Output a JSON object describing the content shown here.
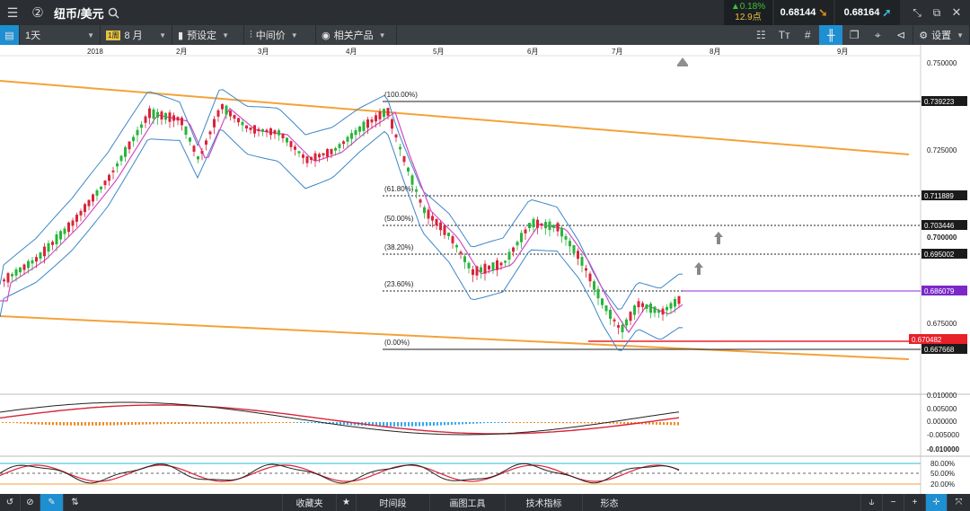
{
  "topbar": {
    "pair": "纽币/美元",
    "badge": "②",
    "change_pct": "▲0.18%",
    "change_pts": "12.9点",
    "sell_price": "0.68144",
    "buy_price": "0.68164"
  },
  "toolbar": {
    "timeframe": "1天",
    "period_badge": "1周",
    "period": "8 月",
    "preset": "预设定",
    "price_type": "中间价",
    "related": "相关产品",
    "settings": "设置"
  },
  "xaxis": {
    "year": "2018",
    "months": [
      "2月",
      "3月",
      "4月",
      "5月",
      "6月",
      "7月",
      "8月",
      "9月"
    ]
  },
  "price_axis": {
    "ticks": [
      "0.750000",
      "0.725000",
      "0.700000",
      "0.675000"
    ],
    "tags": [
      {
        "text": "0.739223",
        "style": "dark"
      },
      {
        "text": "0.711889",
        "style": "dark"
      },
      {
        "text": "0.703446",
        "style": "dark"
      },
      {
        "text": "0.695002",
        "style": "dark"
      },
      {
        "text": "0.686079",
        "style": "purple"
      },
      {
        "text": "0.670482",
        "style": "red"
      },
      {
        "text": "0.667668",
        "style": "dark"
      }
    ]
  },
  "fib_labels": [
    "(100.00%)",
    "(61.80%)",
    "(50.00%)",
    "(38.20%)",
    "(23.60%)",
    "(0.00%)"
  ],
  "macd_axis": [
    "0.010000",
    "0.005000",
    "0.000000",
    "-0.005000",
    "-0.010000"
  ],
  "stoch_axis": [
    "80.00%",
    "50.00%",
    "20.00%"
  ],
  "bottombar": {
    "favorites": "收藏夹",
    "timeframe": "时间段",
    "drawing": "画图工具",
    "indicators": "技术指标",
    "shapes": "形态"
  },
  "colors": {
    "up": "#27b53a",
    "down": "#d8243a",
    "bollinger": "#3c86c8",
    "ma": "#d34cc4",
    "channel": "#f4a23a",
    "accent": "#1e8fd0"
  }
}
